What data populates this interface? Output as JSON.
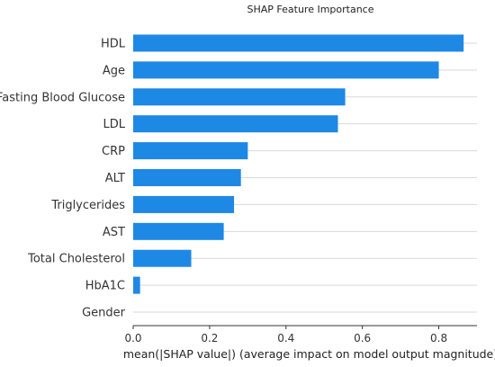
{
  "chart_data": {
    "type": "bar",
    "orientation": "horizontal",
    "title": "SHAP Feature Importance",
    "xlabel": "mean(|SHAP value|) (average impact on model output magnitude)",
    "ylabel": "",
    "xlim": [
      0,
      0.9
    ],
    "xticks": [
      0.0,
      0.2,
      0.4,
      0.6,
      0.8
    ],
    "xtick_labels": [
      "0.0",
      "0.2",
      "0.4",
      "0.6",
      "0.8"
    ],
    "grid": "horizontal",
    "bar_color": "#1e88e5",
    "categories": [
      "HDL",
      "Age",
      "Fasting Blood Glucose",
      "LDL",
      "CRP",
      "ALT",
      "Triglycerides",
      "AST",
      "Total Cholesterol",
      "HbA1C",
      "Gender"
    ],
    "values": [
      0.865,
      0.8,
      0.555,
      0.536,
      0.3,
      0.282,
      0.264,
      0.237,
      0.152,
      0.018,
      0.0
    ]
  }
}
